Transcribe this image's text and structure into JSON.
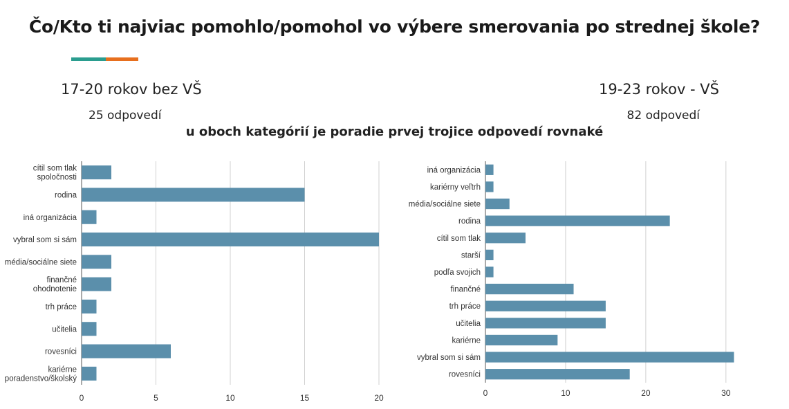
{
  "title": "Čo/Kto ti najviac pomohlo/pomohol vo výbere smerovania po strednej škole?",
  "accent_colors": [
    "#2a9d8f",
    "#e76f1e"
  ],
  "left_group": {
    "label": "17-20 rokov bez VŠ",
    "count": "25 odpovedí"
  },
  "right_group": {
    "label": "19-23 rokov - VŠ",
    "count": "82 odpovedí"
  },
  "note": "u oboch kategórií je poradie prvej trojice odpovedí rovnaké",
  "bar_color": "#5b8fab",
  "chart_data": [
    {
      "type": "bar",
      "orientation": "horizontal",
      "title": "",
      "xlabel": "",
      "ylabel": "",
      "xlim": [
        0,
        20
      ],
      "ticks": [
        0,
        5,
        10,
        15,
        20
      ],
      "grid": true,
      "categories": [
        [
          "cítil som tlak",
          "spoločnosti"
        ],
        [
          "rodina"
        ],
        [
          "iná organizácia"
        ],
        [
          "vybral som si sám"
        ],
        [
          "média/sociálne siete"
        ],
        [
          "finančné",
          "ohodnotenie"
        ],
        [
          "trh práce"
        ],
        [
          "učitelia"
        ],
        [
          "rovesníci"
        ],
        [
          "kariérne",
          "poradenstvo/školský"
        ]
      ],
      "values": [
        2,
        15,
        1,
        20,
        2,
        2,
        1,
        1,
        6,
        1
      ]
    },
    {
      "type": "bar",
      "orientation": "horizontal",
      "title": "",
      "xlabel": "",
      "ylabel": "",
      "xlim": [
        0,
        32
      ],
      "ticks": [
        0,
        10,
        20,
        30
      ],
      "grid": true,
      "categories": [
        [
          "iná organizácia"
        ],
        [
          "kariérny veľtrh"
        ],
        [
          "média/sociálne siete"
        ],
        [
          "rodina"
        ],
        [
          "cítil som tlak"
        ],
        [
          "starší"
        ],
        [
          "podľa svojich"
        ],
        [
          "finančné"
        ],
        [
          "trh práce"
        ],
        [
          "učitelia"
        ],
        [
          "kariérne"
        ],
        [
          "vybral som si sám"
        ],
        [
          "rovesníci"
        ]
      ],
      "values": [
        1,
        1,
        3,
        23,
        5,
        1,
        1,
        11,
        15,
        15,
        9,
        31,
        18
      ]
    }
  ]
}
